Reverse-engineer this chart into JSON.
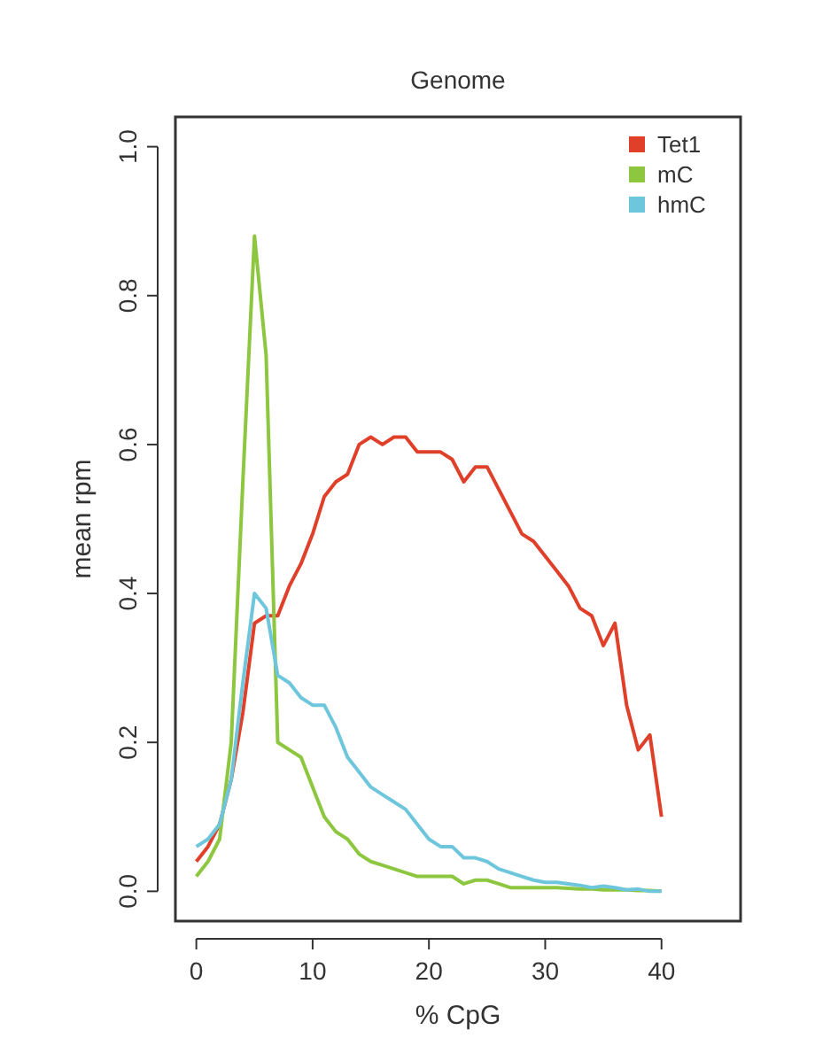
{
  "chart_data": {
    "type": "line",
    "title": "Genome",
    "xlabel": "% CpG",
    "ylabel": "mean rpm",
    "x": [
      0,
      1,
      2,
      3,
      4,
      5,
      6,
      7,
      8,
      9,
      10,
      11,
      12,
      13,
      14,
      15,
      16,
      17,
      18,
      19,
      20,
      21,
      22,
      23,
      24,
      25,
      26,
      27,
      28,
      29,
      30,
      31,
      32,
      33,
      34,
      35,
      36,
      37,
      38,
      39,
      40
    ],
    "series": [
      {
        "name": "Tet1",
        "color": "#e0402a",
        "values": [
          0.04,
          0.06,
          0.09,
          0.15,
          0.24,
          0.36,
          0.37,
          0.37,
          0.41,
          0.44,
          0.48,
          0.53,
          0.55,
          0.56,
          0.6,
          0.61,
          0.6,
          0.61,
          0.61,
          0.59,
          0.59,
          0.59,
          0.58,
          0.55,
          0.57,
          0.57,
          0.54,
          0.51,
          0.48,
          0.47,
          0.45,
          0.43,
          0.41,
          0.38,
          0.37,
          0.33,
          0.36,
          0.25,
          0.19,
          0.21,
          0.1
        ]
      },
      {
        "name": "mC",
        "color": "#8dc63f",
        "values": [
          0.02,
          0.04,
          0.07,
          0.2,
          0.55,
          0.88,
          0.72,
          0.2,
          0.19,
          0.18,
          0.14,
          0.1,
          0.08,
          0.07,
          0.05,
          0.04,
          0.035,
          0.03,
          0.025,
          0.02,
          0.02,
          0.02,
          0.02,
          0.01,
          0.015,
          0.015,
          0.01,
          0.005,
          0.005,
          0.005,
          0.005,
          0.005,
          0.004,
          0.003,
          0.003,
          0.002,
          0.002,
          0.002,
          0.001,
          0.001,
          0
        ]
      },
      {
        "name": "hmC",
        "color": "#6ec6dc",
        "values": [
          0.06,
          0.07,
          0.09,
          0.15,
          0.28,
          0.4,
          0.38,
          0.29,
          0.28,
          0.26,
          0.25,
          0.25,
          0.22,
          0.18,
          0.16,
          0.14,
          0.13,
          0.12,
          0.11,
          0.09,
          0.07,
          0.06,
          0.06,
          0.045,
          0.045,
          0.04,
          0.03,
          0.025,
          0.02,
          0.015,
          0.012,
          0.012,
          0.01,
          0.008,
          0.005,
          0.007,
          0.005,
          0.002,
          0.003,
          0,
          0
        ]
      }
    ],
    "xlim": [
      -1.8,
      46.8
    ],
    "ylim": [
      -0.04,
      1.04
    ],
    "xticks": [
      0,
      10,
      20,
      30,
      40
    ],
    "yticks": [
      {
        "value": 0,
        "label": "0.0"
      },
      {
        "value": 0.2,
        "label": "0.2"
      },
      {
        "value": 0.4,
        "label": "0.4"
      },
      {
        "value": 0.6,
        "label": "0.6"
      },
      {
        "value": 0.8,
        "label": "0.8"
      },
      {
        "value": 1,
        "label": "1.0"
      }
    ],
    "grid": false,
    "legend": "top right",
    "marker": "none",
    "line_style": "solid"
  }
}
